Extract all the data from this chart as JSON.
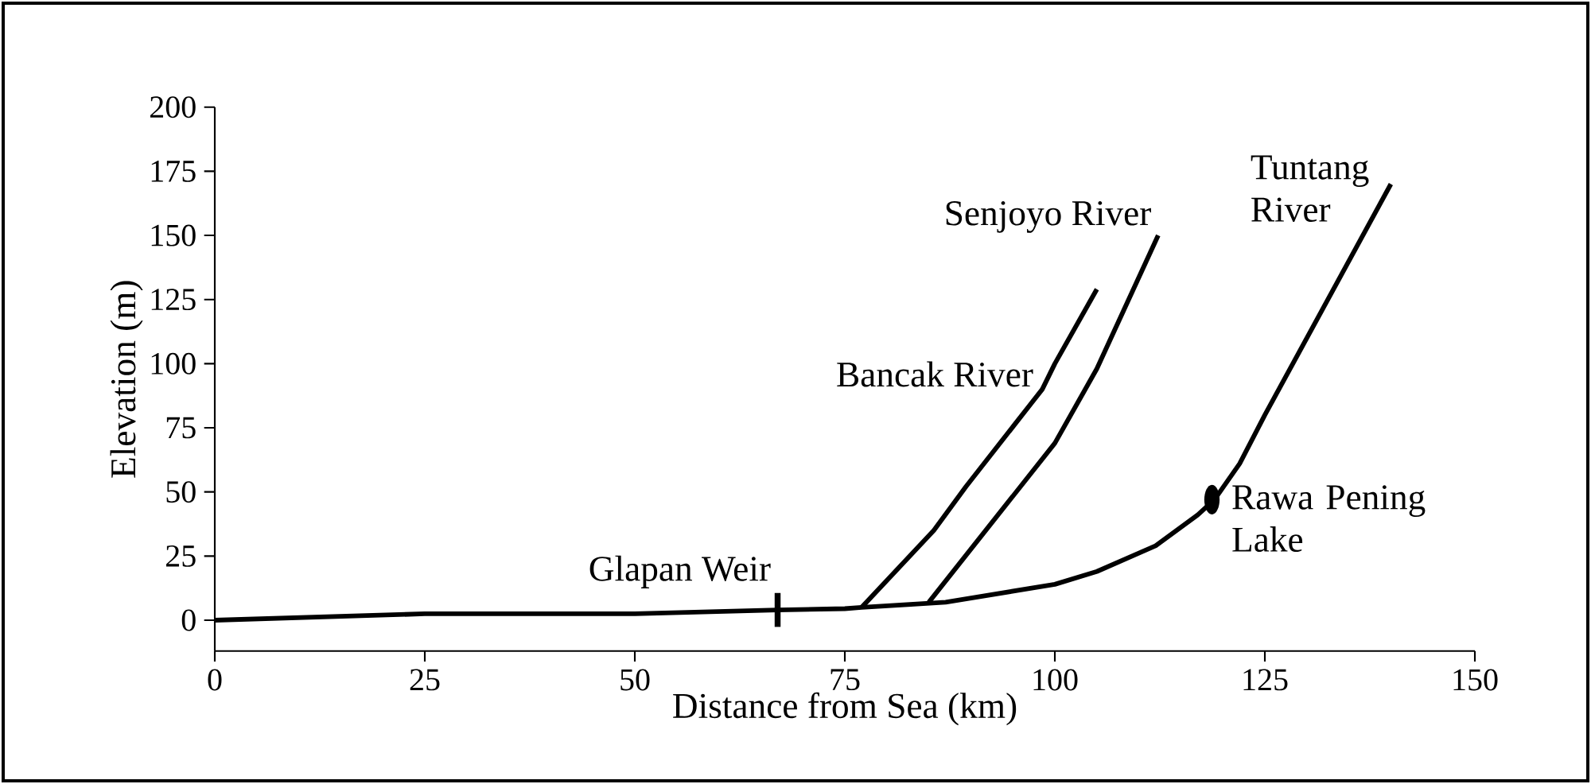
{
  "chart_data": {
    "type": "line",
    "xlabel": "Distance from Sea (km)",
    "ylabel": "Elevation (m)",
    "xlim": [
      0,
      150
    ],
    "ylim": [
      -12,
      200
    ],
    "xticks": [
      0,
      25,
      50,
      75,
      100,
      125,
      150
    ],
    "yticks": [
      0,
      25,
      50,
      75,
      100,
      125,
      150,
      175,
      200
    ],
    "marker": "none",
    "line_style": "solid",
    "series": [
      {
        "name": "Tuntang River",
        "color": "#000000",
        "x": [
          0,
          25,
          50,
          67,
          75,
          77,
          87,
          100,
          105,
          112,
          117,
          119,
          122,
          125,
          132,
          140
        ],
        "values": [
          0,
          2.5,
          2.5,
          4,
          4.5,
          5,
          7,
          14,
          19,
          29,
          41,
          47,
          61,
          80,
          122,
          170
        ]
      },
      {
        "name": "Senjoyo River",
        "color": "#000000",
        "x": [
          85,
          100,
          105,
          112.3
        ],
        "values": [
          7,
          69,
          98,
          150
        ]
      },
      {
        "name": "Bancak River",
        "color": "#000000",
        "x": [
          77,
          85.6,
          89.4,
          98.5,
          100,
          105
        ],
        "values": [
          5,
          35,
          52,
          90,
          100,
          129
        ]
      }
    ],
    "annotations": [
      {
        "text": "Glapan Weir",
        "x": 67,
        "y": 4
      },
      {
        "text": "Rawa Pening Lake",
        "x": 118.7,
        "y": 47
      }
    ]
  }
}
